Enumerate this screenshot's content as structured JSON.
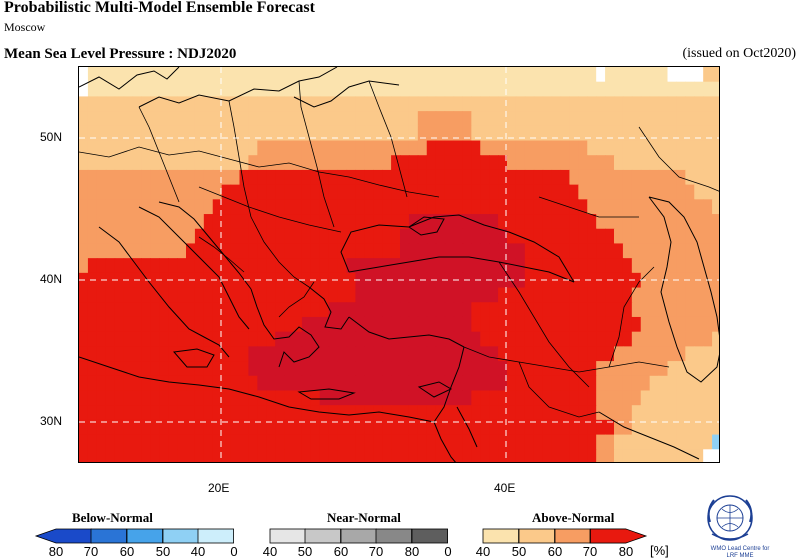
{
  "header": {
    "title": "Probabilistic Multi-Model Ensemble Forecast",
    "subtitle": "Moscow",
    "variable": "Mean Sea Level Pressure : NDJ2020",
    "issued": "(issued on Oct2020)"
  },
  "map": {
    "lat_labels": [
      "50N",
      "40N",
      "30N"
    ],
    "lon_labels": [
      "20E",
      "40E"
    ],
    "lat_range": [
      27,
      55
    ],
    "lon_range": [
      10.5,
      55.5
    ],
    "gridlines": true
  },
  "legend": {
    "categories": [
      "Below-Normal",
      "Near-Normal",
      "Above-Normal"
    ],
    "ticks": [
      "80",
      "70",
      "60",
      "50",
      "40",
      "0",
      "40",
      "50",
      "60",
      "70",
      "80",
      "0",
      "40",
      "50",
      "60",
      "70",
      "80"
    ],
    "unit": "[%]",
    "colors": {
      "below": [
        "#1a4ac9",
        "#2a74d6",
        "#46a3ea",
        "#8fd0f4",
        "#cdeefb"
      ],
      "near": [
        "#e6e6e6",
        "#c8c8c8",
        "#a8a8a8",
        "#888888",
        "#5e5e5e"
      ],
      "above": [
        "#fbe3ae",
        "#fbc98a",
        "#f79d62",
        "#f2653f",
        "#e8190f",
        "#d01226"
      ]
    }
  },
  "logo": {
    "line1": "WMO Lead Centre for",
    "line2": "LRF MME"
  }
}
